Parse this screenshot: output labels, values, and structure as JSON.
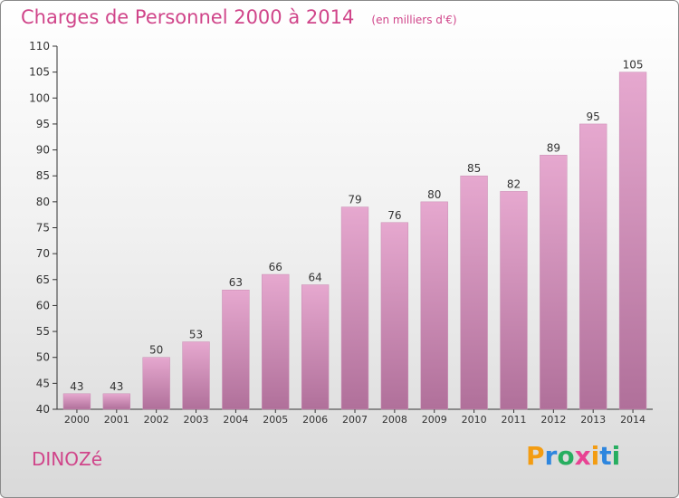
{
  "header": {
    "title": "Charges de Personnel 2000 à 2014",
    "subtitle": "(en milliers d'€)"
  },
  "footer": {
    "commune": "DINOZé",
    "logo": {
      "letters": [
        "P",
        "r",
        "o",
        "x",
        "i",
        "t",
        "i"
      ],
      "colors": [
        "#f39c12",
        "#2e86de",
        "#27ae60",
        "#e84393",
        "#f39c12",
        "#2e86de",
        "#27ae60"
      ]
    }
  },
  "chart_data": {
    "type": "bar",
    "categories": [
      "2000",
      "2001",
      "2002",
      "2003",
      "2004",
      "2005",
      "2006",
      "2007",
      "2008",
      "2009",
      "2010",
      "2011",
      "2012",
      "2013",
      "2014"
    ],
    "values": [
      43,
      43,
      50,
      53,
      63,
      66,
      64,
      79,
      76,
      80,
      85,
      82,
      89,
      95,
      105
    ],
    "title": "Charges de Personnel 2000 à 2014",
    "xlabel": "",
    "ylabel": "",
    "ylim": [
      40,
      110
    ],
    "yticks": [
      40,
      45,
      50,
      55,
      60,
      65,
      70,
      75,
      80,
      85,
      90,
      95,
      100,
      105,
      110
    ],
    "grid": false,
    "colors": {
      "bar_top": "#e6a8cf",
      "bar_bottom": "#b0709a",
      "axis": "#333333"
    }
  }
}
